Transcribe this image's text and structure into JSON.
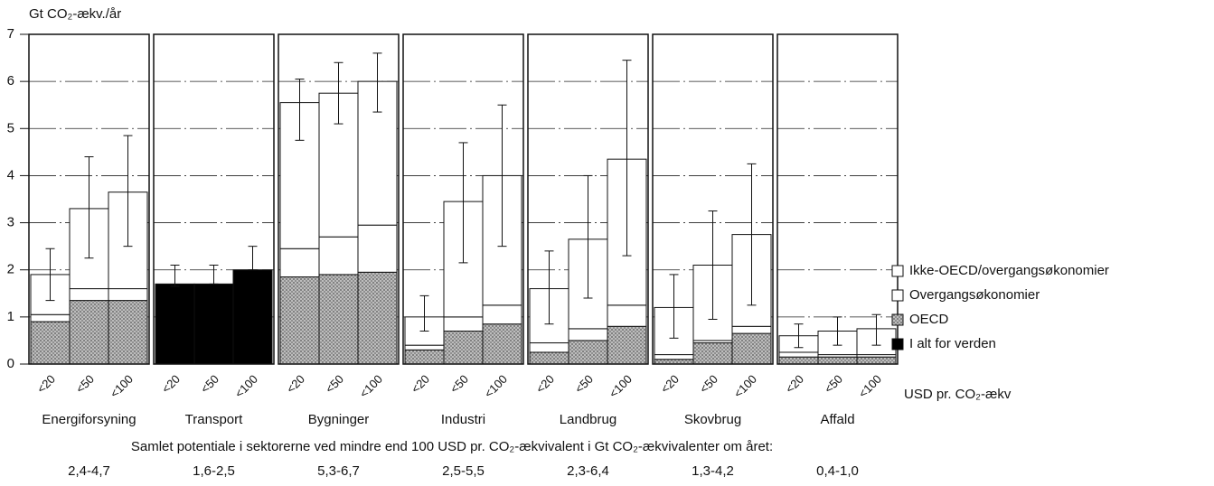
{
  "chart_data": {
    "type": "stacked_bar",
    "y_label": "Gt CO₂-ækv./år",
    "x_unit_label": "USD pr. CO₂-ækv",
    "footer": "Samlet potentiale i sektorerne ved mindre end 100 USD pr. CO₂-ækvivalent i Gt CO₂-ækvivalenter om året:",
    "ylim": [
      0,
      7
    ],
    "yticks": [
      0,
      1,
      2,
      3,
      4,
      5,
      6,
      7
    ],
    "grid": true,
    "legend": "right",
    "panels": [
      {
        "name": "Energiforsyning",
        "potential": "2,4-4,7",
        "categories": [
          "<20",
          "<50",
          "<100"
        ]
      },
      {
        "name": "Transport",
        "potential": "1,6-2,5",
        "categories": [
          "<20",
          "<50",
          "<100"
        ]
      },
      {
        "name": "Bygninger",
        "potential": "5,3-6,7",
        "categories": [
          "<20",
          "<50",
          "<100"
        ]
      },
      {
        "name": "Industri",
        "potential": "2,5-5,5",
        "categories": [
          "<20",
          "<50",
          "<100"
        ]
      },
      {
        "name": "Landbrug",
        "potential": "2,3-6,4",
        "categories": [
          "<20",
          "<50",
          "<100"
        ]
      },
      {
        "name": "Skovbrug",
        "potential": "1,3-4,2",
        "categories": [
          "<20",
          "<50",
          "<100"
        ]
      },
      {
        "name": "Affald",
        "potential": "0,4-1,0",
        "categories": [
          "<20",
          "<50",
          "<100"
        ]
      }
    ],
    "series": [
      {
        "name": "Ikke-OECD/overgangsøkonomier",
        "color": "#ffffff",
        "values": [
          [
            0.85,
            1.7,
            2.05
          ],
          [
            null,
            null,
            null
          ],
          [
            3.1,
            3.05,
            3.05
          ],
          [
            0.6,
            2.45,
            2.75
          ],
          [
            1.15,
            1.9,
            3.1
          ],
          [
            1.0,
            1.6,
            1.95
          ],
          [
            0.35,
            0.5,
            0.55
          ]
        ]
      },
      {
        "name": "Overgangsøkonomier",
        "color": "#ffffff",
        "values": [
          [
            0.15,
            0.25,
            0.25
          ],
          [
            null,
            null,
            null
          ],
          [
            0.6,
            0.8,
            1.0
          ],
          [
            0.1,
            0.3,
            0.4
          ],
          [
            0.2,
            0.25,
            0.45
          ],
          [
            0.1,
            0.05,
            0.15
          ],
          [
            0.1,
            0.05,
            0.05
          ]
        ]
      },
      {
        "name": "OECD",
        "color": "#6e6e6e",
        "values": [
          [
            0.9,
            1.35,
            1.35
          ],
          [
            null,
            null,
            null
          ],
          [
            1.85,
            1.9,
            1.95
          ],
          [
            0.3,
            0.7,
            0.85
          ],
          [
            0.25,
            0.5,
            0.8
          ],
          [
            0.1,
            0.45,
            0.65
          ],
          [
            0.15,
            0.15,
            0.15
          ]
        ]
      },
      {
        "name": "I alt for verden",
        "color": "#000000",
        "values": [
          [
            null,
            null,
            null
          ],
          [
            1.7,
            1.7,
            2.0
          ],
          [
            null,
            null,
            null
          ],
          [
            null,
            null,
            null
          ],
          [
            null,
            null,
            null
          ],
          [
            null,
            null,
            null
          ],
          [
            null,
            null,
            null
          ]
        ]
      }
    ],
    "error_low": [
      [
        1.35,
        2.25,
        2.5
      ],
      [
        1.65,
        1.7,
        2.0
      ],
      [
        4.75,
        5.1,
        5.35
      ],
      [
        0.7,
        2.15,
        2.5
      ],
      [
        0.85,
        1.4,
        2.3
      ],
      [
        0.55,
        0.95,
        1.25
      ],
      [
        0.35,
        0.4,
        0.4
      ]
    ],
    "error_high": [
      [
        2.45,
        4.4,
        4.85
      ],
      [
        2.1,
        2.1,
        2.5
      ],
      [
        6.05,
        6.4,
        6.6
      ],
      [
        1.45,
        4.7,
        5.5
      ],
      [
        2.4,
        4.0,
        6.45
      ],
      [
        1.9,
        3.25,
        4.25
      ],
      [
        0.85,
        1.0,
        1.05
      ]
    ]
  }
}
